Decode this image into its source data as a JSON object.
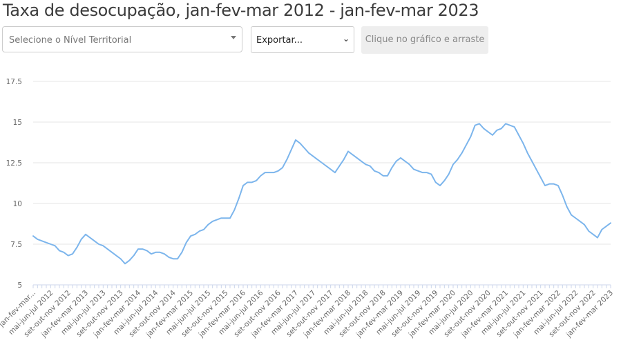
{
  "page": {
    "title": "Taxa de desocupação, jan-fev-mar 2012 - jan-fev-mar 2023"
  },
  "controls": {
    "territorial_placeholder": "Selecione o Nível Territorial",
    "export_label": "Exportar...",
    "drag_hint": "Clique no gráfico e arraste"
  },
  "colors": {
    "line": "#7cb5ec",
    "grid": "#e6e6e6"
  },
  "chart_data": {
    "type": "line",
    "title": "Taxa de desocupação, jan-fev-mar 2012 - jan-fev-mar 2023",
    "ylim": [
      5,
      17.5
    ],
    "yticks": [
      "5",
      "7.5",
      "10",
      "12.5",
      "15",
      "17.5"
    ],
    "xtick_labels": [
      "jan-fev-mar...",
      "mai-jun-jul 2012",
      "set-out-nov 2012",
      "jan-fev-mar 2013",
      "mai-jun-jul 2013",
      "set-out-nov 2013",
      "jan-fev-mar 2014",
      "mai-jun-jul 2014",
      "set-out-nov 2014",
      "jan-fev-mar 2015",
      "mai-jun-jul 2015",
      "set-out-nov 2015",
      "jan-fev-mar 2016",
      "mai-jun-jul 2016",
      "set-out-nov 2016",
      "jan-fev-mar 2017",
      "mai-jun-jul 2017",
      "set-out-nov 2017",
      "jan-fev-mar 2018",
      "mai-jun-jul 2018",
      "set-out-nov 2018",
      "jan-fev-mar 2019",
      "mai-jun-jul 2019",
      "set-out-nov 2019",
      "jan-fev-mar 2020",
      "mai-jun-jul 2020",
      "set-out-nov 2020",
      "jan-fev-mar 2021",
      "mai-jun-jul 2021",
      "set-out-nov 2021",
      "jan-fev-mar 2022",
      "mai-jun-jul 2022",
      "set-out-nov 2022",
      "jan-fev-mar 2023"
    ],
    "grid": true,
    "legend": false,
    "series": [
      {
        "values": [
          8.0,
          7.8,
          7.7,
          7.6,
          7.5,
          7.4,
          7.1,
          7.0,
          6.8,
          6.9,
          7.3,
          7.8,
          8.1,
          7.9,
          7.7,
          7.5,
          7.4,
          7.2,
          7.0,
          6.8,
          6.6,
          6.3,
          6.5,
          6.8,
          7.2,
          7.2,
          7.1,
          6.9,
          7.0,
          7.0,
          6.9,
          6.7,
          6.6,
          6.6,
          7.0,
          7.6,
          8.0,
          8.1,
          8.3,
          8.4,
          8.7,
          8.9,
          9.0,
          9.1,
          9.1,
          9.1,
          9.6,
          10.3,
          11.1,
          11.3,
          11.3,
          11.4,
          11.7,
          11.9,
          11.9,
          11.9,
          12.0,
          12.2,
          12.7,
          13.3,
          13.9,
          13.7,
          13.4,
          13.1,
          12.9,
          12.7,
          12.5,
          12.3,
          12.1,
          11.9,
          12.3,
          12.7,
          13.2,
          13.0,
          12.8,
          12.6,
          12.4,
          12.3,
          12.0,
          11.9,
          11.7,
          11.7,
          12.2,
          12.6,
          12.8,
          12.6,
          12.4,
          12.1,
          12.0,
          11.9,
          11.9,
          11.8,
          11.3,
          11.1,
          11.4,
          11.8,
          12.4,
          12.7,
          13.1,
          13.6,
          14.1,
          14.8,
          14.9,
          14.6,
          14.4,
          14.2,
          14.5,
          14.6,
          14.9,
          14.8,
          14.7,
          14.2,
          13.7,
          13.1,
          12.6,
          12.1,
          11.6,
          11.1,
          11.2,
          11.2,
          11.1,
          10.5,
          9.8,
          9.3,
          9.1,
          8.9,
          8.7,
          8.3,
          8.1,
          7.9,
          8.4,
          8.6,
          8.8
        ]
      }
    ]
  }
}
